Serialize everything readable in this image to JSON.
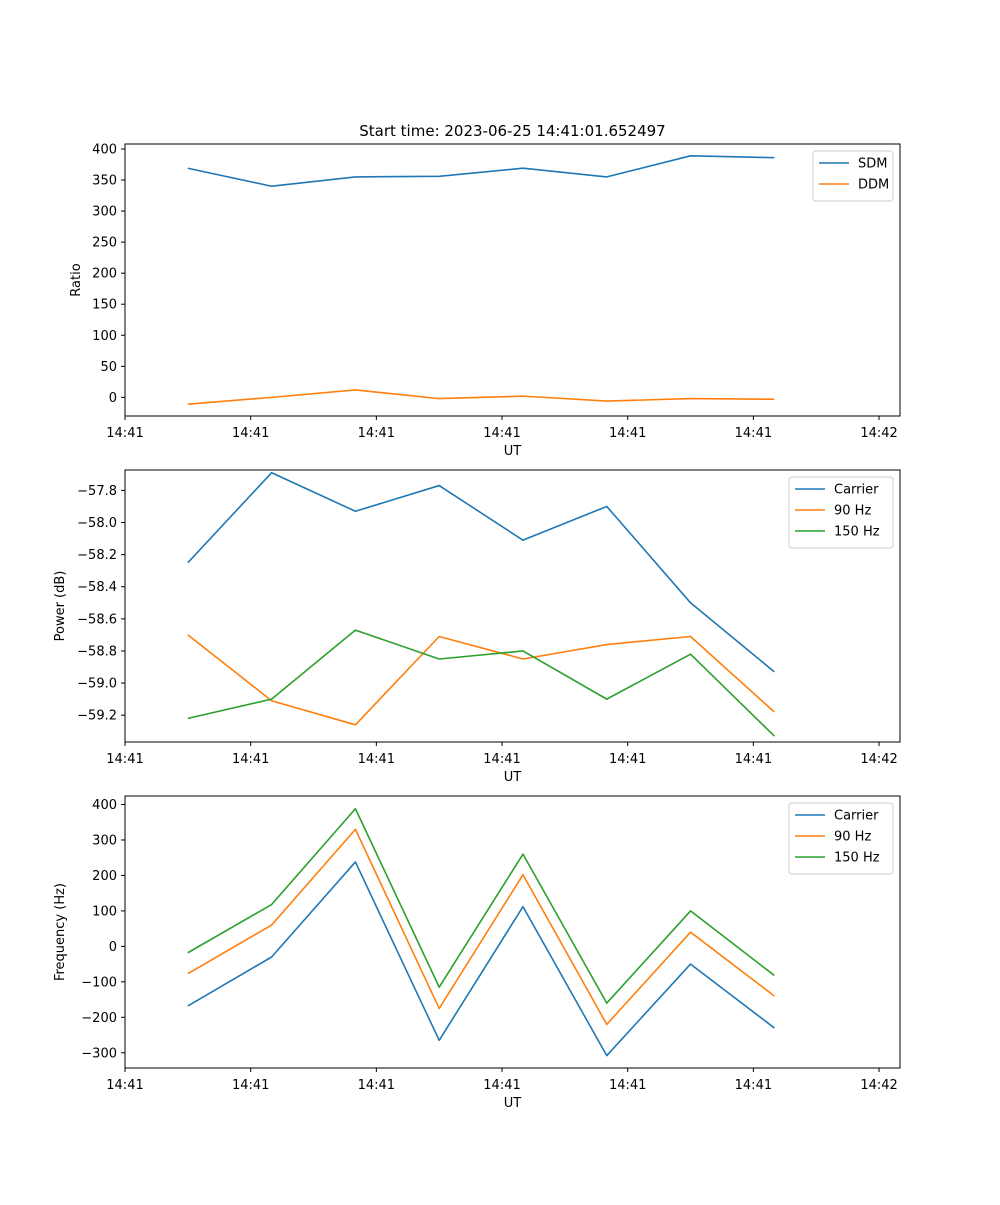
{
  "figure": {
    "suptitle": "Start time: 2023-06-25 14:41:01.652497"
  },
  "chart_data": [
    {
      "type": "line",
      "title": "Start time: 2023-06-25 14:41:01.652497",
      "xlabel": "UT",
      "ylabel": "Ratio",
      "xlim": [
        -0.75,
        8.5
      ],
      "ylim": [
        -30,
        408
      ],
      "x_ticks": [
        -0.75,
        0.75,
        2.25,
        3.75,
        5.25,
        6.75,
        8.25
      ],
      "x_tick_labels": [
        "14:41",
        "14:41",
        "14:41",
        "14:41",
        "14:41",
        "14:41",
        "14:42"
      ],
      "y_ticks": [
        0,
        50,
        100,
        150,
        200,
        250,
        300,
        350,
        400
      ],
      "y_tick_labels": [
        "0",
        "50",
        "100",
        "150",
        "200",
        "250",
        "300",
        "350",
        "400"
      ],
      "legend_position": "top-right",
      "x": [
        0,
        1,
        2,
        3,
        4,
        5,
        6,
        7
      ],
      "series": [
        {
          "name": "SDM",
          "color": "#1f77b4",
          "values": [
            369,
            340,
            355,
            356,
            369,
            355,
            389,
            386
          ]
        },
        {
          "name": "DDM",
          "color": "#ff7f0e",
          "values": [
            -11,
            0,
            12,
            -2,
            2,
            -6,
            -2,
            -3
          ]
        }
      ]
    },
    {
      "type": "line",
      "title": "",
      "xlabel": "UT",
      "ylabel": "Power (dB)",
      "xlim": [
        -0.75,
        8.5
      ],
      "ylim": [
        -59.367,
        -57.673
      ],
      "x_ticks": [
        -0.75,
        0.75,
        2.25,
        3.75,
        5.25,
        6.75,
        8.25
      ],
      "x_tick_labels": [
        "14:41",
        "14:41",
        "14:41",
        "14:41",
        "14:41",
        "14:41",
        "14:42"
      ],
      "y_ticks": [
        -59.2,
        -59.0,
        -58.8,
        -58.6,
        -58.4,
        -58.2,
        -58.0,
        -57.8
      ],
      "y_tick_labels": [
        "−59.2",
        "−59.0",
        "−58.8",
        "−58.6",
        "−58.4",
        "−58.2",
        "−58.0",
        "−57.8"
      ],
      "legend_position": "top-right",
      "x": [
        0,
        1,
        2,
        3,
        4,
        5,
        6,
        7
      ],
      "series": [
        {
          "name": "Carrier",
          "color": "#1f77b4",
          "values": [
            -58.25,
            -57.69,
            -57.93,
            -57.77,
            -58.11,
            -57.9,
            -58.5,
            -58.93
          ]
        },
        {
          "name": "90 Hz",
          "color": "#ff7f0e",
          "values": [
            -58.7,
            -59.11,
            -59.26,
            -58.71,
            -58.85,
            -58.76,
            -58.71,
            -59.18
          ]
        },
        {
          "name": "150 Hz",
          "color": "#2ca02c",
          "values": [
            -59.22,
            -59.1,
            -58.67,
            -58.85,
            -58.8,
            -59.1,
            -58.82,
            -59.33
          ]
        }
      ]
    },
    {
      "type": "line",
      "title": "",
      "xlabel": "UT",
      "ylabel": "Frequency (Hz)",
      "xlim": [
        -0.75,
        8.5
      ],
      "ylim": [
        -343,
        424
      ],
      "x_ticks": [
        -0.75,
        0.75,
        2.25,
        3.75,
        5.25,
        6.75,
        8.25
      ],
      "x_tick_labels": [
        "14:41",
        "14:41",
        "14:41",
        "14:41",
        "14:41",
        "14:41",
        "14:42"
      ],
      "y_ticks": [
        -300,
        -200,
        -100,
        0,
        100,
        200,
        300,
        400
      ],
      "y_tick_labels": [
        "−300",
        "−200",
        "−100",
        "0",
        "100",
        "200",
        "300",
        "400"
      ],
      "legend_position": "top-right",
      "x": [
        0,
        1,
        2,
        3,
        4,
        5,
        6,
        7
      ],
      "series": [
        {
          "name": "Carrier",
          "color": "#1f77b4",
          "values": [
            -168,
            -30,
            238,
            -265,
            112,
            -308,
            -50,
            -230
          ]
        },
        {
          "name": "90 Hz",
          "color": "#ff7f0e",
          "values": [
            -77,
            60,
            330,
            -175,
            202,
            -220,
            40,
            -140
          ]
        },
        {
          "name": "150 Hz",
          "color": "#2ca02c",
          "values": [
            -18,
            118,
            388,
            -115,
            260,
            -160,
            100,
            -82
          ]
        }
      ]
    }
  ]
}
